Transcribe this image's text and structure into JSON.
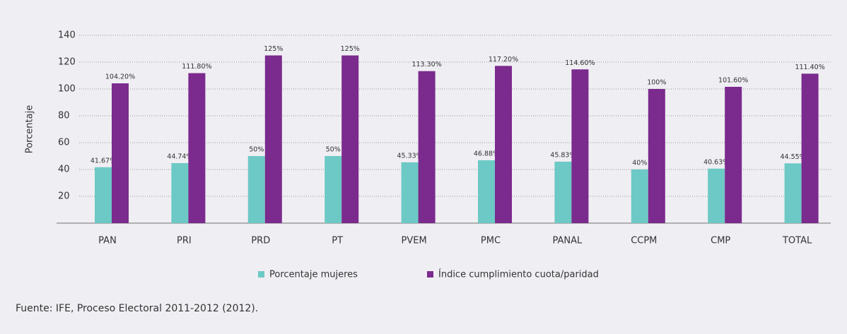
{
  "chart_data": {
    "type": "bar",
    "y_label": "Porcentaje",
    "categories": [
      "PAN",
      "PRI",
      "PRD",
      "PT",
      "PVEM",
      "PMC",
      "PANAL",
      "CCPM",
      "CMP",
      "TOTAL"
    ],
    "series": [
      {
        "name": "Porcentaje mujeres",
        "color": "#6dc9c5",
        "values": [
          41.67,
          44.74,
          50,
          50,
          45.33,
          46.88,
          45.83,
          40,
          40.63,
          44.55
        ],
        "value_labels": [
          "41.67%",
          "44.74%",
          "50%",
          "50%",
          "45.33%",
          "46.88%",
          "45.83%",
          "40%",
          "40.63%",
          "44.55%"
        ]
      },
      {
        "name": "Índice cumplimiento cuota/paridad",
        "color": "#7b2a8d",
        "values": [
          104.2,
          111.8,
          125,
          125,
          113.3,
          117.2,
          114.6,
          100,
          101.6,
          111.4
        ],
        "value_labels": [
          "104.20%",
          "111.80%",
          "125%",
          "125%",
          "113.30%",
          "117.20%",
          "114.60%",
          "100%",
          "101.60%",
          "111.40%"
        ]
      }
    ],
    "ylim": [
      0,
      140
    ],
    "yticks": [
      20,
      40,
      60,
      80,
      100,
      120,
      140
    ],
    "grid": true,
    "source": "Fuente: IFE, Proceso Electoral 2011-2012 (2012)."
  }
}
